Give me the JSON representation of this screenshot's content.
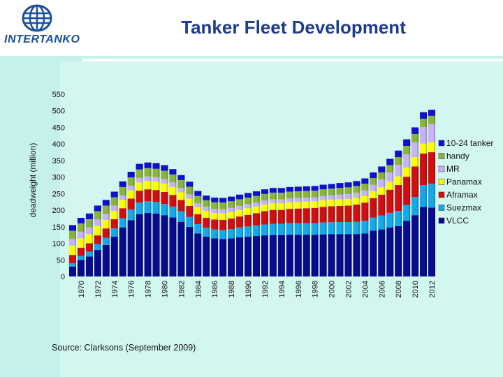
{
  "slide": {
    "title": "Tanker Fleet Development",
    "logo_text": "INTERTANKO",
    "source": "Source: Clarksons (September 2009)"
  },
  "colors": {
    "header_bg": "#ffffff",
    "panel_bg": "#d2f6f0",
    "left_bg": "#c6f0ec",
    "title": "#1f3c8c"
  },
  "chart_data": {
    "type": "bar",
    "stacked": true,
    "title": "",
    "xlabel": "",
    "ylabel": "deadweight (million)",
    "ylim": [
      0,
      550
    ],
    "yticks": [
      0,
      50,
      100,
      150,
      200,
      250,
      300,
      350,
      400,
      450,
      500,
      550
    ],
    "xtick_labels": [
      "1970",
      "1972",
      "1974",
      "1976",
      "1978",
      "1980",
      "1982",
      "1984",
      "1986",
      "1988",
      "1990",
      "1992",
      "1994",
      "1996",
      "1998",
      "2000",
      "2002",
      "2004",
      "2006",
      "2008",
      "2010",
      "2012"
    ],
    "legend_position": "right",
    "categories": [
      "1969",
      "1970",
      "1971",
      "1972",
      "1973",
      "1974",
      "1975",
      "1976",
      "1977",
      "1978",
      "1979",
      "1980",
      "1981",
      "1982",
      "1983",
      "1984",
      "1985",
      "1986",
      "1987",
      "1988",
      "1989",
      "1990",
      "1991",
      "1992",
      "1993",
      "1994",
      "1995",
      "1996",
      "1997",
      "1998",
      "1999",
      "2000",
      "2001",
      "2002",
      "2003",
      "2004",
      "2005",
      "2006",
      "2007",
      "2008",
      "2009",
      "2010",
      "2011",
      "2012"
    ],
    "series": [
      {
        "name": "VLCC",
        "color": "#0a0a8c",
        "values": [
          30,
          50,
          60,
          80,
          95,
          120,
          148,
          170,
          188,
          192,
          190,
          185,
          178,
          165,
          150,
          130,
          120,
          115,
          113,
          115,
          118,
          120,
          122,
          124,
          125,
          125,
          126,
          126,
          126,
          126,
          127,
          128,
          128,
          128,
          128,
          130,
          138,
          142,
          148,
          152,
          168,
          185,
          210,
          208
        ]
      },
      {
        "name": "Suezmax",
        "color": "#18a8e8",
        "values": [
          10,
          12,
          15,
          18,
          22,
          25,
          28,
          32,
          35,
          35,
          35,
          34,
          33,
          32,
          30,
          28,
          27,
          27,
          27,
          28,
          30,
          31,
          32,
          33,
          34,
          34,
          35,
          35,
          35,
          35,
          36,
          36,
          36,
          36,
          37,
          38,
          40,
          42,
          44,
          46,
          48,
          55,
          66,
          72
        ]
      },
      {
        "name": "Aframax",
        "color": "#d01010",
        "values": [
          25,
          25,
          25,
          26,
          28,
          28,
          30,
          33,
          36,
          36,
          36,
          36,
          35,
          34,
          33,
          30,
          30,
          30,
          31,
          32,
          33,
          35,
          37,
          40,
          42,
          42,
          43,
          44,
          45,
          46,
          47,
          48,
          49,
          50,
          52,
          55,
          58,
          63,
          70,
          78,
          85,
          92,
          95,
          95
        ]
      },
      {
        "name": "Panamax",
        "color": "#ffff00",
        "values": [
          28,
          28,
          28,
          28,
          26,
          25,
          25,
          25,
          25,
          25,
          25,
          25,
          24,
          23,
          22,
          21,
          21,
          20,
          20,
          20,
          20,
          20,
          20,
          20,
          20,
          20,
          20,
          20,
          20,
          20,
          20,
          20,
          20,
          20,
          20,
          20,
          21,
          22,
          24,
          26,
          28,
          28,
          30,
          30
        ]
      },
      {
        "name": "MR",
        "color": "#c8b4f4",
        "values": [
          20,
          20,
          20,
          20,
          18,
          16,
          14,
          14,
          14,
          14,
          14,
          14,
          14,
          13,
          13,
          12,
          12,
          12,
          12,
          12,
          12,
          12,
          12,
          12,
          12,
          12,
          12,
          12,
          12,
          12,
          13,
          13,
          14,
          15,
          16,
          17,
          20,
          24,
          28,
          35,
          40,
          45,
          50,
          55
        ]
      },
      {
        "name": "handy",
        "color": "#8cb43c",
        "values": [
          25,
          25,
          25,
          25,
          25,
          25,
          25,
          25,
          25,
          25,
          25,
          25,
          24,
          24,
          23,
          22,
          20,
          20,
          20,
          20,
          20,
          20,
          20,
          20,
          20,
          20,
          20,
          20,
          20,
          20,
          20,
          20,
          20,
          20,
          20,
          20,
          20,
          21,
          22,
          23,
          25,
          25,
          25,
          25
        ]
      },
      {
        "name": "10-24 tanker",
        "color": "#1010d0",
        "values": [
          17,
          17,
          17,
          17,
          17,
          17,
          17,
          17,
          17,
          17,
          17,
          17,
          16,
          15,
          15,
          15,
          14,
          14,
          14,
          14,
          14,
          14,
          14,
          14,
          14,
          14,
          14,
          14,
          14,
          14,
          14,
          14,
          15,
          15,
          15,
          16,
          17,
          18,
          19,
          20,
          20,
          20,
          20,
          18
        ]
      }
    ]
  }
}
